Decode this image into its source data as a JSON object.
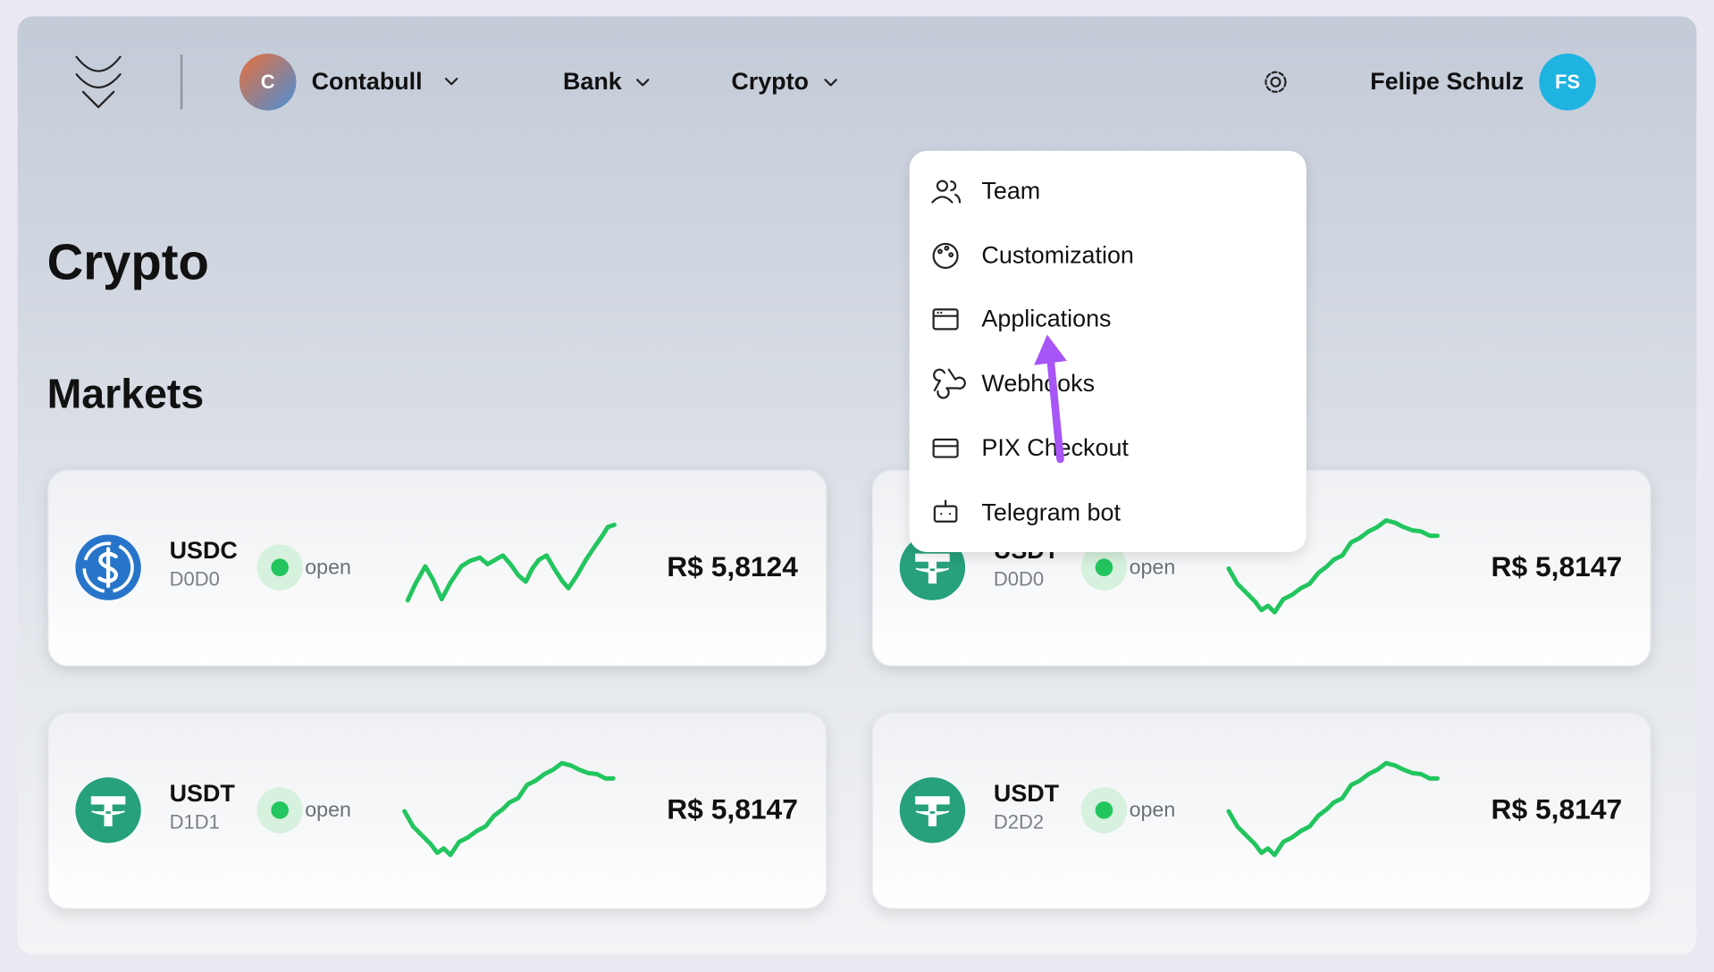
{
  "header": {
    "workspace": {
      "initial": "C",
      "name": "Contabull"
    },
    "nav": [
      "Bank",
      "Crypto"
    ],
    "user": {
      "name": "Felipe Schulz",
      "initials": "FS"
    }
  },
  "page": {
    "title": "Crypto",
    "section": "Markets"
  },
  "menu": [
    "Team",
    "Customization",
    "Applications",
    "Webhooks",
    "PIX Checkout",
    "Telegram bot"
  ],
  "cards": [
    {
      "symbol": "USDC",
      "code": "D0D0",
      "status": "open",
      "price": "R$ 5,8124"
    },
    {
      "symbol": "USDT",
      "code": "D0D0",
      "status": "open",
      "price": "R$ 5,8147"
    },
    {
      "symbol": "USDT",
      "code": "D1D1",
      "status": "open",
      "price": "R$ 5,8147"
    },
    {
      "symbol": "USDT",
      "code": "D2D2",
      "status": "open",
      "price": "R$ 5,8147"
    }
  ]
}
